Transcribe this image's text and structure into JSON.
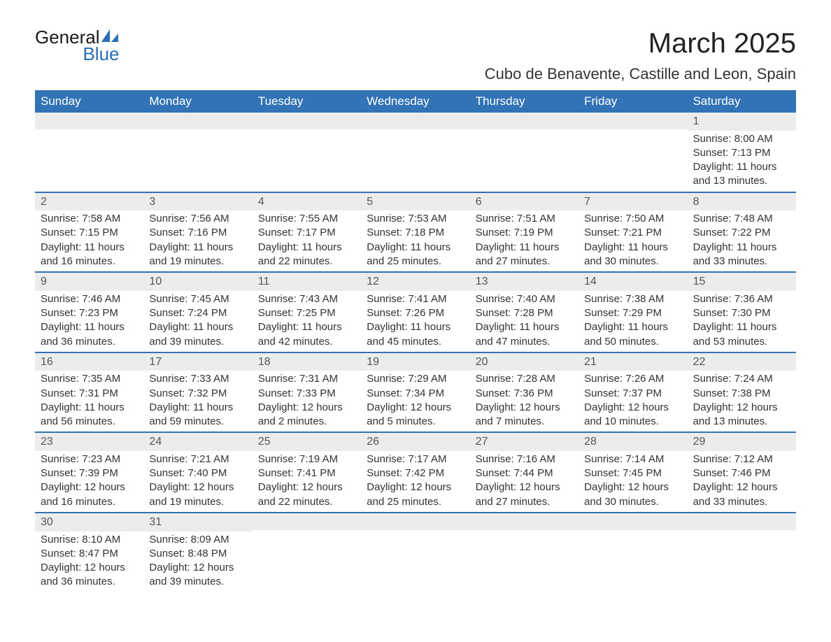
{
  "logo": {
    "text1": "General",
    "text2": "Blue",
    "accent_color": "#2a6fb5"
  },
  "title": "March 2025",
  "location": "Cubo de Benavente, Castille and Leon, Spain",
  "colors": {
    "header_bg": "#3173b4",
    "header_fg": "#ffffff",
    "daynum_bg": "#ececec",
    "daynum_fg": "#555555",
    "text": "#333333",
    "week_border": "#3173b4"
  },
  "day_labels": [
    "Sunday",
    "Monday",
    "Tuesday",
    "Wednesday",
    "Thursday",
    "Friday",
    "Saturday"
  ],
  "weeks": [
    [
      {
        "blank": true
      },
      {
        "blank": true
      },
      {
        "blank": true
      },
      {
        "blank": true
      },
      {
        "blank": true
      },
      {
        "blank": true
      },
      {
        "n": "1",
        "sunrise": "Sunrise: 8:00 AM",
        "sunset": "Sunset: 7:13 PM",
        "daylight": "Daylight: 11 hours and 13 minutes."
      }
    ],
    [
      {
        "n": "2",
        "sunrise": "Sunrise: 7:58 AM",
        "sunset": "Sunset: 7:15 PM",
        "daylight": "Daylight: 11 hours and 16 minutes."
      },
      {
        "n": "3",
        "sunrise": "Sunrise: 7:56 AM",
        "sunset": "Sunset: 7:16 PM",
        "daylight": "Daylight: 11 hours and 19 minutes."
      },
      {
        "n": "4",
        "sunrise": "Sunrise: 7:55 AM",
        "sunset": "Sunset: 7:17 PM",
        "daylight": "Daylight: 11 hours and 22 minutes."
      },
      {
        "n": "5",
        "sunrise": "Sunrise: 7:53 AM",
        "sunset": "Sunset: 7:18 PM",
        "daylight": "Daylight: 11 hours and 25 minutes."
      },
      {
        "n": "6",
        "sunrise": "Sunrise: 7:51 AM",
        "sunset": "Sunset: 7:19 PM",
        "daylight": "Daylight: 11 hours and 27 minutes."
      },
      {
        "n": "7",
        "sunrise": "Sunrise: 7:50 AM",
        "sunset": "Sunset: 7:21 PM",
        "daylight": "Daylight: 11 hours and 30 minutes."
      },
      {
        "n": "8",
        "sunrise": "Sunrise: 7:48 AM",
        "sunset": "Sunset: 7:22 PM",
        "daylight": "Daylight: 11 hours and 33 minutes."
      }
    ],
    [
      {
        "n": "9",
        "sunrise": "Sunrise: 7:46 AM",
        "sunset": "Sunset: 7:23 PM",
        "daylight": "Daylight: 11 hours and 36 minutes."
      },
      {
        "n": "10",
        "sunrise": "Sunrise: 7:45 AM",
        "sunset": "Sunset: 7:24 PM",
        "daylight": "Daylight: 11 hours and 39 minutes."
      },
      {
        "n": "11",
        "sunrise": "Sunrise: 7:43 AM",
        "sunset": "Sunset: 7:25 PM",
        "daylight": "Daylight: 11 hours and 42 minutes."
      },
      {
        "n": "12",
        "sunrise": "Sunrise: 7:41 AM",
        "sunset": "Sunset: 7:26 PM",
        "daylight": "Daylight: 11 hours and 45 minutes."
      },
      {
        "n": "13",
        "sunrise": "Sunrise: 7:40 AM",
        "sunset": "Sunset: 7:28 PM",
        "daylight": "Daylight: 11 hours and 47 minutes."
      },
      {
        "n": "14",
        "sunrise": "Sunrise: 7:38 AM",
        "sunset": "Sunset: 7:29 PM",
        "daylight": "Daylight: 11 hours and 50 minutes."
      },
      {
        "n": "15",
        "sunrise": "Sunrise: 7:36 AM",
        "sunset": "Sunset: 7:30 PM",
        "daylight": "Daylight: 11 hours and 53 minutes."
      }
    ],
    [
      {
        "n": "16",
        "sunrise": "Sunrise: 7:35 AM",
        "sunset": "Sunset: 7:31 PM",
        "daylight": "Daylight: 11 hours and 56 minutes."
      },
      {
        "n": "17",
        "sunrise": "Sunrise: 7:33 AM",
        "sunset": "Sunset: 7:32 PM",
        "daylight": "Daylight: 11 hours and 59 minutes."
      },
      {
        "n": "18",
        "sunrise": "Sunrise: 7:31 AM",
        "sunset": "Sunset: 7:33 PM",
        "daylight": "Daylight: 12 hours and 2 minutes."
      },
      {
        "n": "19",
        "sunrise": "Sunrise: 7:29 AM",
        "sunset": "Sunset: 7:34 PM",
        "daylight": "Daylight: 12 hours and 5 minutes."
      },
      {
        "n": "20",
        "sunrise": "Sunrise: 7:28 AM",
        "sunset": "Sunset: 7:36 PM",
        "daylight": "Daylight: 12 hours and 7 minutes."
      },
      {
        "n": "21",
        "sunrise": "Sunrise: 7:26 AM",
        "sunset": "Sunset: 7:37 PM",
        "daylight": "Daylight: 12 hours and 10 minutes."
      },
      {
        "n": "22",
        "sunrise": "Sunrise: 7:24 AM",
        "sunset": "Sunset: 7:38 PM",
        "daylight": "Daylight: 12 hours and 13 minutes."
      }
    ],
    [
      {
        "n": "23",
        "sunrise": "Sunrise: 7:23 AM",
        "sunset": "Sunset: 7:39 PM",
        "daylight": "Daylight: 12 hours and 16 minutes."
      },
      {
        "n": "24",
        "sunrise": "Sunrise: 7:21 AM",
        "sunset": "Sunset: 7:40 PM",
        "daylight": "Daylight: 12 hours and 19 minutes."
      },
      {
        "n": "25",
        "sunrise": "Sunrise: 7:19 AM",
        "sunset": "Sunset: 7:41 PM",
        "daylight": "Daylight: 12 hours and 22 minutes."
      },
      {
        "n": "26",
        "sunrise": "Sunrise: 7:17 AM",
        "sunset": "Sunset: 7:42 PM",
        "daylight": "Daylight: 12 hours and 25 minutes."
      },
      {
        "n": "27",
        "sunrise": "Sunrise: 7:16 AM",
        "sunset": "Sunset: 7:44 PM",
        "daylight": "Daylight: 12 hours and 27 minutes."
      },
      {
        "n": "28",
        "sunrise": "Sunrise: 7:14 AM",
        "sunset": "Sunset: 7:45 PM",
        "daylight": "Daylight: 12 hours and 30 minutes."
      },
      {
        "n": "29",
        "sunrise": "Sunrise: 7:12 AM",
        "sunset": "Sunset: 7:46 PM",
        "daylight": "Daylight: 12 hours and 33 minutes."
      }
    ],
    [
      {
        "n": "30",
        "sunrise": "Sunrise: 8:10 AM",
        "sunset": "Sunset: 8:47 PM",
        "daylight": "Daylight: 12 hours and 36 minutes."
      },
      {
        "n": "31",
        "sunrise": "Sunrise: 8:09 AM",
        "sunset": "Sunset: 8:48 PM",
        "daylight": "Daylight: 12 hours and 39 minutes."
      },
      {
        "blank": true
      },
      {
        "blank": true
      },
      {
        "blank": true
      },
      {
        "blank": true
      },
      {
        "blank": true
      }
    ]
  ]
}
